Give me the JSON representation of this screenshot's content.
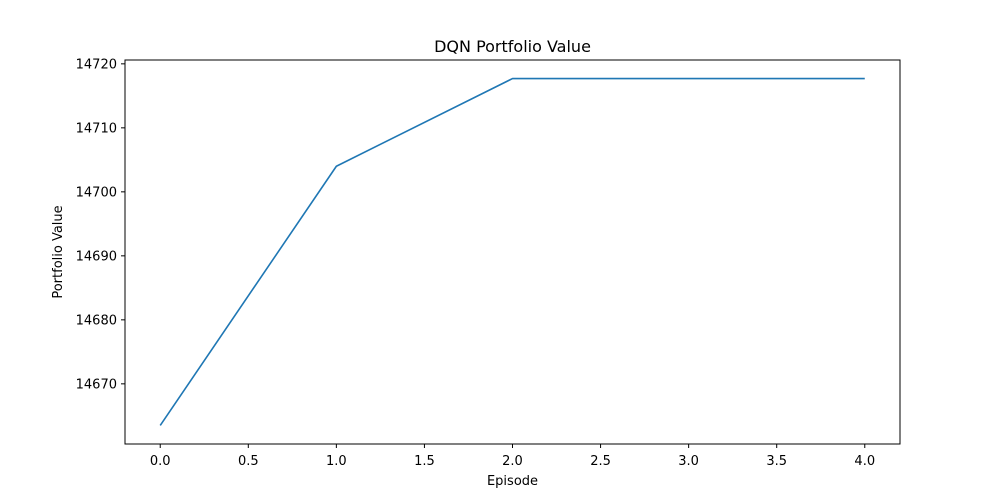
{
  "chart_data": {
    "type": "line",
    "title": "DQN Portfolio Value",
    "xlabel": "Episode",
    "ylabel": "Portfolio Value",
    "x": [
      0,
      1,
      2,
      3,
      4
    ],
    "series": [
      {
        "values": [
          14663.5,
          14704.0,
          14717.7,
          14717.7,
          14717.7
        ],
        "color": "#1f77b4"
      }
    ],
    "xlim": [
      -0.2,
      4.2
    ],
    "ylim": [
      14660.6,
      14720.6
    ],
    "xticks": [
      "0.0",
      "0.5",
      "1.0",
      "1.5",
      "2.0",
      "2.5",
      "3.0",
      "3.5",
      "4.0"
    ],
    "yticks": [
      "14670",
      "14680",
      "14690",
      "14700",
      "14710",
      "14720"
    ],
    "grid": false,
    "legend": false
  }
}
